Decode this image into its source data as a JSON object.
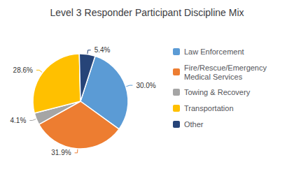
{
  "chart_data": {
    "type": "pie",
    "title": "Level 3 Responder Participant Discipline Mix",
    "categories": [
      "Law Enforcement",
      "Fire/Rescue/Emergency\nMedical Services",
      "Towing & Recovery",
      "Transportation",
      "Other"
    ],
    "values": [
      30.0,
      31.9,
      4.1,
      28.6,
      5.4
    ],
    "value_labels": [
      "30.0%",
      "31.9%",
      "4.1%",
      "28.6%",
      "5.4%"
    ],
    "colors": [
      "#5B9BD5",
      "#ED7D31",
      "#A5A5A5",
      "#FFC000",
      "#264478"
    ],
    "data_labels": true,
    "legend": "right"
  }
}
